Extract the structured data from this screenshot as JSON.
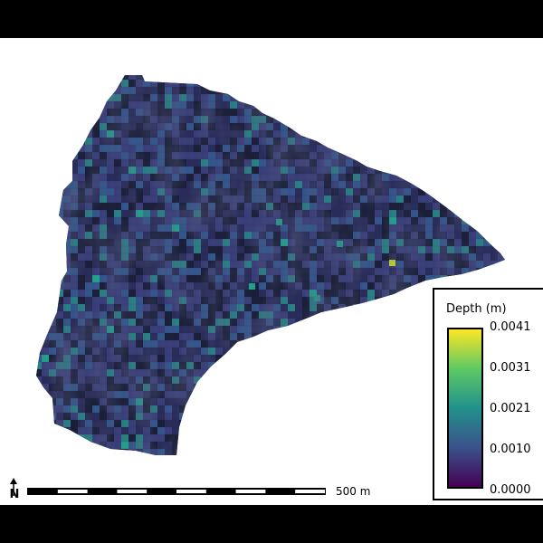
{
  "map": {
    "legend": {
      "title": "Depth (m)",
      "ticks": [
        "0.0041",
        "0.0031",
        "0.0021",
        "0.0010",
        "0.0000"
      ],
      "colormap": [
        "#fde725",
        "#5ec962",
        "#21918c",
        "#3b528b",
        "#440154"
      ]
    },
    "scale_bar": {
      "label": "500 m",
      "segments": 10
    },
    "north_arrow": {
      "label": "N"
    },
    "raster": {
      "dominant_colors": [
        "#1b1f3a",
        "#2a2d5a",
        "#3a3f7a",
        "#34568c",
        "#2b7f86",
        "#25a18e",
        "#c2d62c"
      ]
    }
  }
}
